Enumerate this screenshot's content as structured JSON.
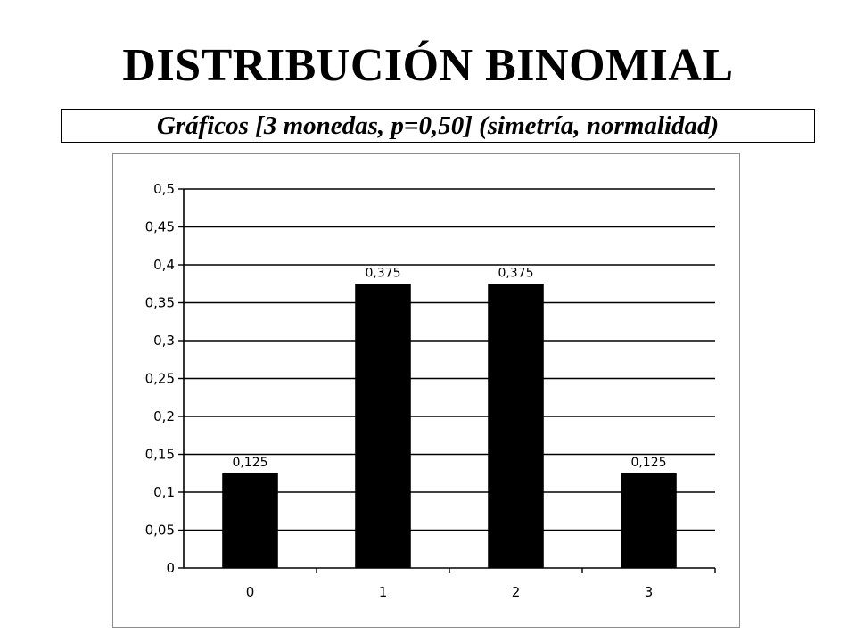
{
  "slide": {
    "title": "DISTRIBUCIÓN BINOMIAL",
    "subtitle": "Gráficos [3 monedas, p=0,50] (simetría, normalidad)"
  },
  "chart_data": {
    "type": "bar",
    "categories": [
      "0",
      "1",
      "2",
      "3"
    ],
    "values": [
      0.125,
      0.375,
      0.375,
      0.125
    ],
    "data_labels": [
      "0,125",
      "0,375",
      "0,375",
      "0,125"
    ],
    "title": "",
    "xlabel": "",
    "ylabel": "",
    "ylim": [
      0,
      0.5
    ],
    "yticks": [
      0,
      0.05,
      0.1,
      0.15,
      0.2,
      0.25,
      0.3,
      0.35,
      0.4,
      0.45,
      0.5
    ],
    "ytick_labels": [
      "0",
      "0,05",
      "0,1",
      "0,15",
      "0,2",
      "0,25",
      "0,3",
      "0,35",
      "0,4",
      "0,45",
      "0,5"
    ],
    "grid": true,
    "legend": "none",
    "bar_color": "#000000",
    "grid_color": "#000000"
  }
}
